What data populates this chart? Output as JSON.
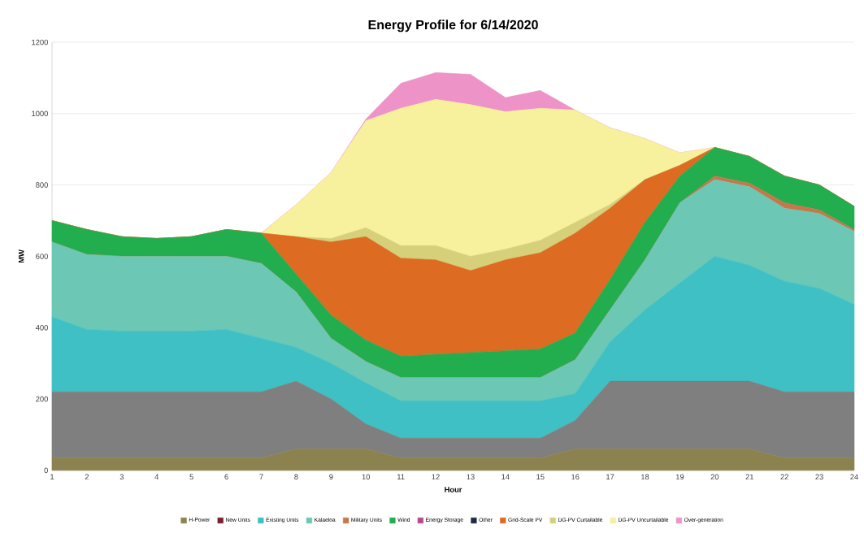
{
  "chart_data": {
    "type": "area",
    "stacked": true,
    "title": "Energy Profile for 6/14/2020",
    "xlabel": "Hour",
    "ylabel": "MW",
    "x": [
      1,
      2,
      3,
      4,
      5,
      6,
      7,
      8,
      9,
      10,
      11,
      12,
      13,
      14,
      15,
      16,
      17,
      18,
      19,
      20,
      21,
      22,
      23,
      24
    ],
    "xlim": [
      1,
      24
    ],
    "xticks": [
      1,
      2,
      3,
      4,
      5,
      6,
      7,
      8,
      9,
      10,
      11,
      12,
      13,
      14,
      15,
      16,
      17,
      18,
      19,
      20,
      21,
      22,
      23,
      24
    ],
    "ylim": [
      0,
      1200
    ],
    "yticks": [
      0,
      200,
      400,
      600,
      800,
      1000,
      1200
    ],
    "grid": "y",
    "legend": "bottom",
    "series": [
      {
        "name": "H-Power",
        "color": "#8c8250",
        "values": [
          35,
          35,
          35,
          35,
          35,
          35,
          35,
          60,
          60,
          60,
          35,
          35,
          35,
          35,
          35,
          60,
          60,
          60,
          60,
          60,
          60,
          35,
          35,
          35
        ]
      },
      {
        "name": "New Units",
        "color": "#7b1f2e",
        "values": [
          null,
          null,
          null,
          null,
          null,
          null,
          null,
          null,
          null,
          null,
          null,
          null,
          null,
          null,
          null,
          null,
          null,
          null,
          null,
          null,
          null,
          null,
          null,
          null
        ]
      },
      {
        "color": "#7f7f7f",
        "values": [
          185,
          185,
          185,
          185,
          185,
          185,
          185,
          190,
          140,
          70,
          55,
          55,
          55,
          55,
          55,
          80,
          190,
          190,
          190,
          190,
          190,
          185,
          185,
          185
        ]
      },
      {
        "name": "Existing Units",
        "color": "#3fc0c4",
        "values": [
          210,
          175,
          170,
          170,
          170,
          175,
          150,
          95,
          100,
          115,
          105,
          105,
          105,
          105,
          105,
          75,
          110,
          200,
          275,
          350,
          325,
          310,
          290,
          245
        ]
      },
      {
        "name": "Kalaeloa",
        "color": "#6cc7b5",
        "values": [
          210,
          210,
          210,
          210,
          210,
          205,
          210,
          155,
          70,
          60,
          65,
          65,
          65,
          65,
          65,
          95,
          90,
          140,
          225,
          215,
          220,
          205,
          210,
          205
        ]
      },
      {
        "name": "Military Units",
        "color": "#c8764a",
        "values": [
          0,
          0,
          0,
          0,
          0,
          0,
          0,
          0,
          0,
          0,
          0,
          0,
          0,
          0,
          0,
          0,
          0,
          0,
          0,
          10,
          10,
          15,
          10,
          5
        ]
      },
      {
        "name": "Wind",
        "color": "#22ad4f",
        "values": [
          60,
          70,
          55,
          50,
          55,
          75,
          85,
          50,
          65,
          60,
          60,
          65,
          70,
          75,
          80,
          75,
          85,
          105,
          75,
          80,
          75,
          75,
          70,
          65
        ]
      },
      {
        "name": "Energy Storage",
        "color": "#b8478f",
        "values": [
          null,
          null,
          null,
          null,
          null,
          null,
          null,
          null,
          null,
          null,
          null,
          null,
          null,
          null,
          null,
          null,
          null,
          null,
          null,
          null,
          null,
          null,
          null,
          null
        ]
      },
      {
        "name": "Other",
        "color": "#1f2a44",
        "values": [
          null,
          null,
          null,
          null,
          null,
          null,
          null,
          null,
          null,
          null,
          null,
          null,
          null,
          null,
          null,
          null,
          null,
          null,
          null,
          null,
          null,
          null,
          null,
          null
        ]
      },
      {
        "name": "Grid-Scale PV",
        "color": "#dd6b22",
        "values": [
          0,
          0,
          0,
          0,
          0,
          0,
          0,
          105,
          205,
          290,
          275,
          265,
          230,
          255,
          270,
          280,
          200,
          120,
          30,
          0,
          0,
          0,
          0,
          0
        ]
      },
      {
        "name": "DG-PV Curtailable",
        "color": "#d6d07a",
        "values": [
          0,
          0,
          0,
          0,
          0,
          0,
          0,
          0,
          10,
          25,
          35,
          40,
          40,
          30,
          35,
          30,
          10,
          0,
          0,
          0,
          0,
          0,
          0,
          0
        ]
      },
      {
        "name": "DG-PV Uncurtailable",
        "color": "#f7f09c",
        "values": [
          0,
          0,
          0,
          0,
          0,
          0,
          0,
          90,
          185,
          300,
          385,
          410,
          425,
          385,
          370,
          315,
          215,
          115,
          35,
          0,
          0,
          0,
          0,
          0
        ]
      },
      {
        "name": "Over-generation",
        "color": "#ee93c8",
        "values": [
          0,
          0,
          0,
          0,
          0,
          0,
          0,
          0,
          0,
          5,
          70,
          75,
          85,
          40,
          50,
          0,
          0,
          0,
          0,
          0,
          0,
          0,
          0,
          0
        ]
      }
    ]
  }
}
